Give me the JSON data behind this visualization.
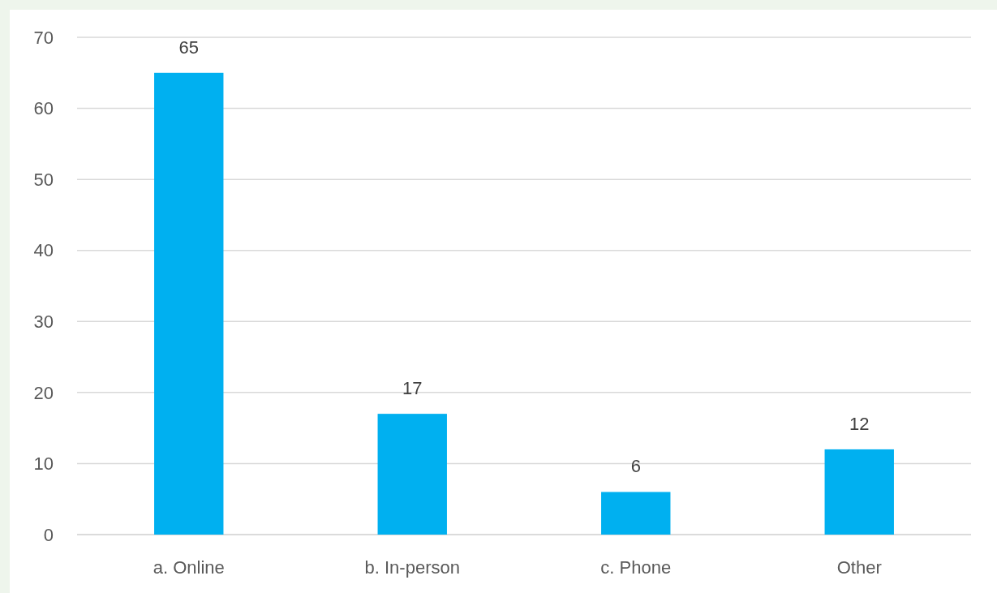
{
  "chart_data": {
    "type": "bar",
    "categories": [
      "a. Online",
      "b. In-person",
      "c. Phone",
      "Other"
    ],
    "values": [
      65,
      17,
      6,
      12
    ],
    "color": "#00b0f0",
    "ylim": [
      0,
      70
    ],
    "yticks": [
      0,
      10,
      20,
      30,
      40,
      50,
      60,
      70
    ],
    "grid": "y",
    "data_labels": true
  }
}
